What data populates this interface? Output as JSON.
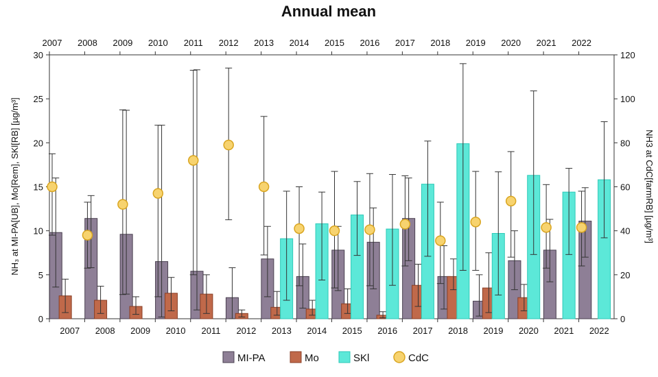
{
  "chart_data": {
    "type": "bar",
    "title": "Annual mean",
    "categories": [
      "2007",
      "2008",
      "2009",
      "2010",
      "2011",
      "2012",
      "2013",
      "2014",
      "2015",
      "2016",
      "2017",
      "2018",
      "2019",
      "2020",
      "2021",
      "2022"
    ],
    "ylabel_left": "NH₃ at MI-PA[UB], Mo[Rem], SKl[RB] [µg/m³]",
    "ylabel_right": "NH3 at CdC[farmRB] [µg/m³]",
    "ylim_left": [
      0,
      30
    ],
    "ylim_right": [
      0,
      120
    ],
    "yticks_left": [
      0,
      5,
      10,
      15,
      20,
      25,
      30
    ],
    "yticks_right": [
      0,
      20,
      40,
      60,
      80,
      100,
      120
    ],
    "series": [
      {
        "name": "MI-PA",
        "axis": "left",
        "color": "#8e7f96",
        "values": [
          9.8,
          11.4,
          9.6,
          6.5,
          5.4,
          2.4,
          6.8,
          4.8,
          7.8,
          8.7,
          11.4,
          4.8,
          2.0,
          6.6,
          7.8,
          11.1
        ],
        "err_low": [
          3.6,
          5.8,
          2.8,
          0.2,
          1.0,
          0.0,
          2.5,
          1.2,
          3.2,
          3.4,
          6.6,
          1.1,
          0.3,
          3.3,
          4.2,
          7.0
        ],
        "err_high": [
          16.0,
          14.0,
          23.7,
          22.0,
          28.3,
          5.8,
          10.5,
          8.5,
          10.5,
          12.6,
          16.0,
          8.3,
          5.0,
          10.0,
          11.3,
          14.9
        ]
      },
      {
        "name": "Mo",
        "axis": "left",
        "color": "#c0694a",
        "values": [
          2.6,
          2.1,
          1.4,
          2.9,
          2.8,
          0.6,
          1.3,
          1.1,
          1.7,
          0.4,
          3.8,
          4.8,
          3.5,
          2.4,
          null,
          null
        ],
        "err_low": [
          0.7,
          0.6,
          0.5,
          0.9,
          0.6,
          0.2,
          0.4,
          0.4,
          0.6,
          0.1,
          1.4,
          3.3,
          0.7,
          0.9,
          null,
          null
        ],
        "err_high": [
          4.5,
          3.7,
          2.5,
          4.7,
          5.0,
          1.0,
          3.1,
          2.1,
          3.4,
          0.8,
          6.2,
          6.8,
          7.5,
          3.9,
          null,
          null
        ]
      },
      {
        "name": "SKl",
        "axis": "left",
        "color": "#5ce8d8",
        "values": [
          null,
          null,
          null,
          null,
          null,
          null,
          9.1,
          10.8,
          11.8,
          10.2,
          15.3,
          19.9,
          9.7,
          16.3,
          14.4,
          15.8
        ],
        "err_low": [
          null,
          null,
          null,
          null,
          null,
          null,
          2.1,
          4.4,
          7.2,
          3.8,
          7.1,
          5.5,
          2.7,
          7.3,
          7.3,
          9.2
        ],
        "err_high": [
          null,
          null,
          null,
          null,
          null,
          null,
          14.5,
          14.4,
          15.6,
          16.4,
          20.2,
          29.0,
          16.7,
          25.9,
          17.1,
          22.4
        ]
      },
      {
        "name": "CdC",
        "axis": "right",
        "color": "#f7d36f",
        "values": [
          60,
          38,
          52,
          57,
          72,
          79,
          60,
          41,
          40,
          40.5,
          43,
          35.5,
          44,
          53.5,
          41.5,
          41.5
        ],
        "err_low": [
          38,
          23,
          11,
          10,
          20,
          45,
          29,
          15,
          14,
          15,
          24,
          16,
          22,
          28,
          23,
          24
        ],
        "err_high": [
          75,
          53,
          95,
          88,
          113,
          114,
          92,
          60,
          67,
          66,
          65,
          53,
          67,
          76,
          61,
          58
        ]
      }
    ],
    "legend": [
      "MI-PA",
      "Mo",
      "SKl",
      "CdC"
    ]
  }
}
